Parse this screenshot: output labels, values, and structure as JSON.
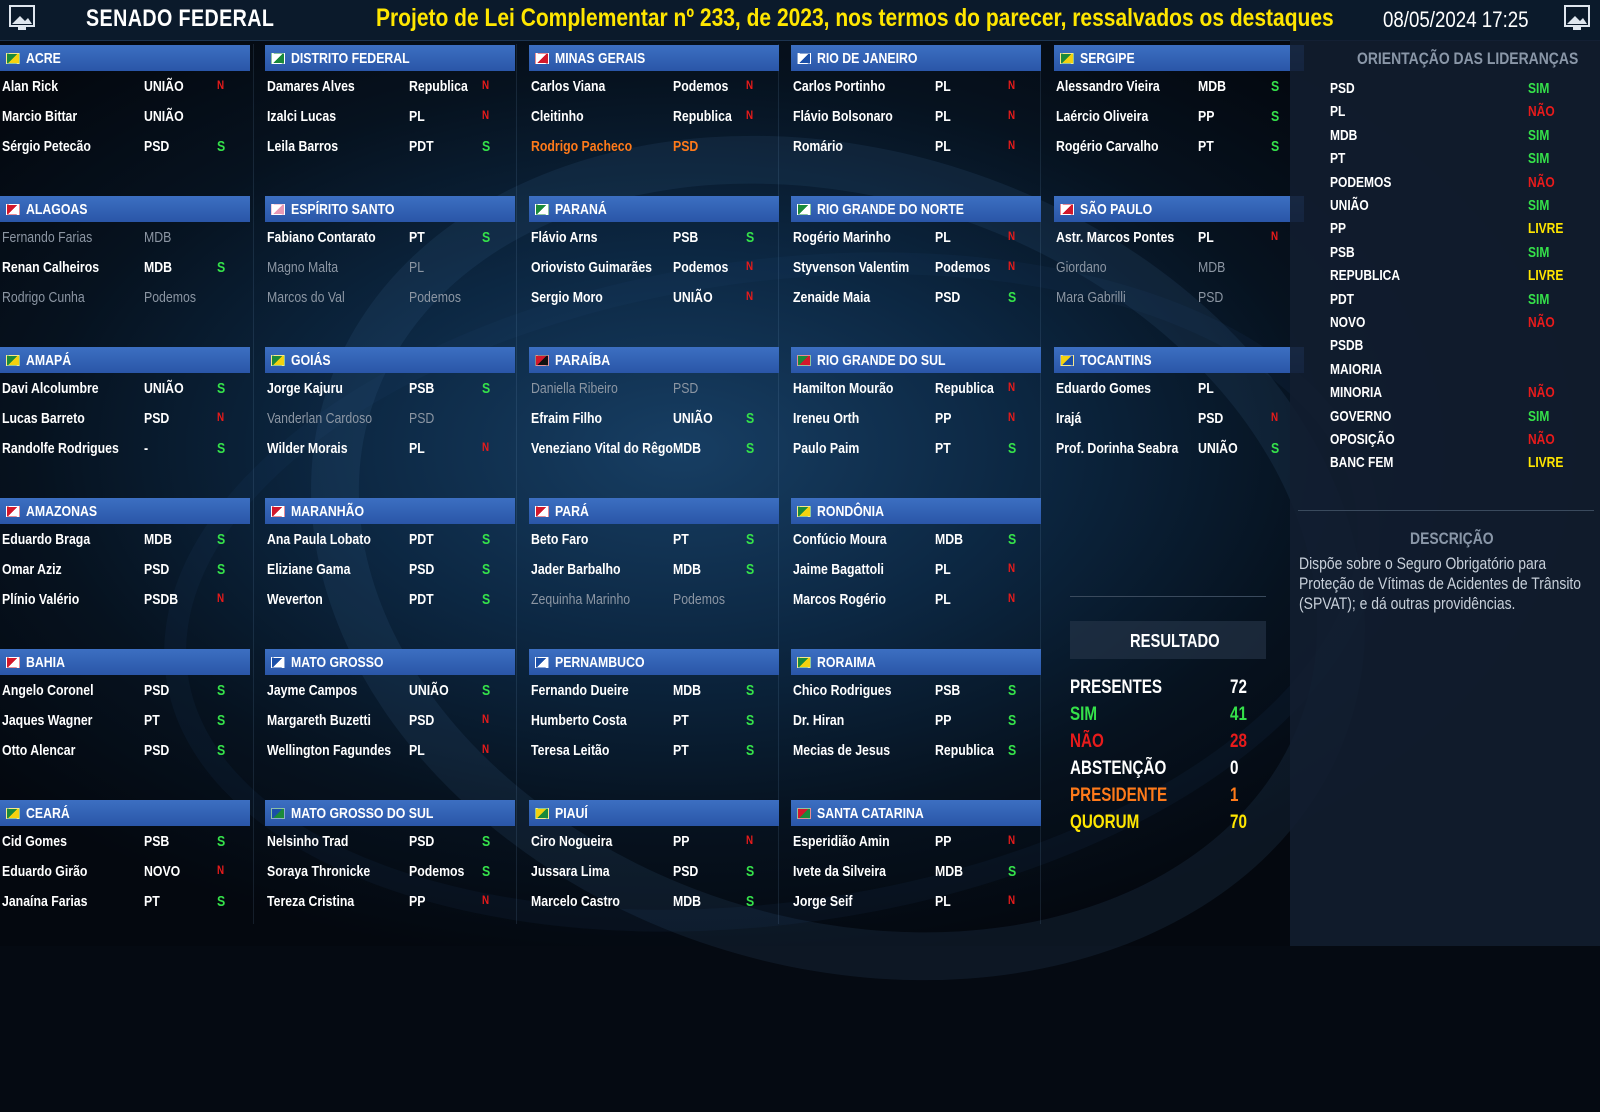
{
  "header": {
    "brand": "SENADO FEDERAL",
    "project": "Projeto de Lei Complementar nº 233, de 2023, nos termos do parecer, ressalvados os destaques",
    "datetime": "08/05/2024 17:25"
  },
  "colors": {
    "header_blue": "#3c6fc2",
    "yes_green": "#35e14a",
    "no_red": "#e81b1b",
    "free_yellow": "#ffe600",
    "president_orange": "#ff7a1a"
  },
  "states": [
    {
      "name": "ACRE",
      "flag": [
        "#1b8a3a",
        "#f4d20e"
      ],
      "senators": [
        {
          "name": "Alan Rick",
          "party": "UNIÃO",
          "vote": "N"
        },
        {
          "name": "Marcio Bittar",
          "party": "UNIÃO",
          "vote": ""
        },
        {
          "name": "Sérgio Petecão",
          "party": "PSD",
          "vote": "S"
        }
      ]
    },
    {
      "name": "ALAGOAS",
      "flag": [
        "#d3182b",
        "#ffffff"
      ],
      "senators": [
        {
          "name": "Fernando Farias",
          "party": "MDB",
          "vote": "",
          "status": "absent"
        },
        {
          "name": "Renan Calheiros",
          "party": "MDB",
          "vote": "S"
        },
        {
          "name": "Rodrigo Cunha",
          "party": "Podemos",
          "vote": "",
          "status": "absent"
        }
      ]
    },
    {
      "name": "AMAPÁ",
      "flag": [
        "#1b8a3a",
        "#f4d20e"
      ],
      "senators": [
        {
          "name": "Davi Alcolumbre",
          "party": "UNIÃO",
          "vote": "S"
        },
        {
          "name": "Lucas Barreto",
          "party": "PSD",
          "vote": "N"
        },
        {
          "name": "Randolfe Rodrigues",
          "party": "-",
          "vote": "S"
        }
      ]
    },
    {
      "name": "AMAZONAS",
      "flag": [
        "#d3182b",
        "#ffffff"
      ],
      "senators": [
        {
          "name": "Eduardo Braga",
          "party": "MDB",
          "vote": "S"
        },
        {
          "name": "Omar Aziz",
          "party": "PSD",
          "vote": "S"
        },
        {
          "name": "Plínio Valério",
          "party": "PSDB",
          "vote": "N"
        }
      ]
    },
    {
      "name": "BAHIA",
      "flag": [
        "#d3182b",
        "#ffffff"
      ],
      "senators": [
        {
          "name": "Angelo Coronel",
          "party": "PSD",
          "vote": "S"
        },
        {
          "name": "Jaques Wagner",
          "party": "PT",
          "vote": "S"
        },
        {
          "name": "Otto Alencar",
          "party": "PSD",
          "vote": "S"
        }
      ]
    },
    {
      "name": "CEARÁ",
      "flag": [
        "#1b8a3a",
        "#f4d20e"
      ],
      "senators": [
        {
          "name": "Cid Gomes",
          "party": "PSB",
          "vote": "S"
        },
        {
          "name": "Eduardo Girão",
          "party": "NOVO",
          "vote": "N"
        },
        {
          "name": "Janaína Farias",
          "party": "PT",
          "vote": "S"
        }
      ]
    },
    {
      "name": "DISTRITO FEDERAL",
      "flag": [
        "#ffffff",
        "#1b8a3a"
      ],
      "senators": [
        {
          "name": "Damares Alves",
          "party": "Republica",
          "vote": "N"
        },
        {
          "name": "Izalci Lucas",
          "party": "PL",
          "vote": "N"
        },
        {
          "name": "Leila Barros",
          "party": "PDT",
          "vote": "S"
        }
      ]
    },
    {
      "name": "ESPÍRITO SANTO",
      "flag": [
        "#ffffff",
        "#e89ab5"
      ],
      "senators": [
        {
          "name": "Fabiano Contarato",
          "party": "PT",
          "vote": "S"
        },
        {
          "name": "Magno Malta",
          "party": "PL",
          "vote": "",
          "status": "absent"
        },
        {
          "name": "Marcos do Val",
          "party": "Podemos",
          "vote": "",
          "status": "absent"
        }
      ]
    },
    {
      "name": "GOIÁS",
      "flag": [
        "#1b8a3a",
        "#f4d20e"
      ],
      "senators": [
        {
          "name": "Jorge Kajuru",
          "party": "PSB",
          "vote": "S"
        },
        {
          "name": "Vanderlan Cardoso",
          "party": "PSD",
          "vote": "",
          "status": "absent"
        },
        {
          "name": "Wilder Morais",
          "party": "PL",
          "vote": "N"
        }
      ]
    },
    {
      "name": "MARANHÃO",
      "flag": [
        "#d3182b",
        "#ffffff"
      ],
      "senators": [
        {
          "name": "Ana Paula Lobato",
          "party": "PDT",
          "vote": "S"
        },
        {
          "name": "Eliziane Gama",
          "party": "PSD",
          "vote": "S"
        },
        {
          "name": "Weverton",
          "party": "PDT",
          "vote": "S"
        }
      ]
    },
    {
      "name": "MATO GROSSO",
      "flag": [
        "#1b4fa8",
        "#ffffff"
      ],
      "senators": [
        {
          "name": "Jayme Campos",
          "party": "UNIÃO",
          "vote": "S"
        },
        {
          "name": "Margareth Buzetti",
          "party": "PSD",
          "vote": "N"
        },
        {
          "name": "Wellington Fagundes",
          "party": "PL",
          "vote": "N"
        }
      ]
    },
    {
      "name": "MATO GROSSO DO SUL",
      "flag": [
        "#1b4fa8",
        "#1b8a3a"
      ],
      "senators": [
        {
          "name": "Nelsinho Trad",
          "party": "PSD",
          "vote": "S"
        },
        {
          "name": "Soraya Thronicke",
          "party": "Podemos",
          "vote": "S"
        },
        {
          "name": "Tereza Cristina",
          "party": "PP",
          "vote": "N"
        }
      ]
    },
    {
      "name": "MINAS GERAIS",
      "flag": [
        "#ffffff",
        "#d3182b"
      ],
      "senators": [
        {
          "name": "Carlos Viana",
          "party": "Podemos",
          "vote": "N"
        },
        {
          "name": "Cleitinho",
          "party": "Republica",
          "vote": "N"
        },
        {
          "name": "Rodrigo Pacheco",
          "party": "PSD",
          "vote": "",
          "status": "president"
        }
      ]
    },
    {
      "name": "PARANÁ",
      "flag": [
        "#1b8a3a",
        "#ffffff"
      ],
      "senators": [
        {
          "name": "Flávio Arns",
          "party": "PSB",
          "vote": "S"
        },
        {
          "name": "Oriovisto Guimarães",
          "party": "Podemos",
          "vote": "N"
        },
        {
          "name": "Sergio Moro",
          "party": "UNIÃO",
          "vote": "N"
        }
      ]
    },
    {
      "name": "PARAÍBA",
      "flag": [
        "#d3182b",
        "#111111"
      ],
      "senators": [
        {
          "name": "Daniella Ribeiro",
          "party": "PSD",
          "vote": "",
          "status": "absent"
        },
        {
          "name": "Efraim Filho",
          "party": "UNIÃO",
          "vote": "S"
        },
        {
          "name": "Veneziano Vital do Rêgo",
          "party": "MDB",
          "vote": "S"
        }
      ]
    },
    {
      "name": "PARÁ",
      "flag": [
        "#d3182b",
        "#ffffff"
      ],
      "senators": [
        {
          "name": "Beto Faro",
          "party": "PT",
          "vote": "S"
        },
        {
          "name": "Jader Barbalho",
          "party": "MDB",
          "vote": "S"
        },
        {
          "name": "Zequinha Marinho",
          "party": "Podemos",
          "vote": "",
          "status": "absent"
        }
      ]
    },
    {
      "name": "PERNAMBUCO",
      "flag": [
        "#1b4fa8",
        "#ffffff"
      ],
      "senators": [
        {
          "name": "Fernando Dueire",
          "party": "MDB",
          "vote": "S"
        },
        {
          "name": "Humberto Costa",
          "party": "PT",
          "vote": "S"
        },
        {
          "name": "Teresa Leitão",
          "party": "PT",
          "vote": "S"
        }
      ]
    },
    {
      "name": "PIAUÍ",
      "flag": [
        "#f4d20e",
        "#1b8a3a"
      ],
      "senators": [
        {
          "name": "Ciro Nogueira",
          "party": "PP",
          "vote": "N"
        },
        {
          "name": "Jussara Lima",
          "party": "PSD",
          "vote": "S"
        },
        {
          "name": "Marcelo Castro",
          "party": "MDB",
          "vote": "S"
        }
      ]
    },
    {
      "name": "RIO DE JANEIRO",
      "flag": [
        "#ffffff",
        "#1b4fa8"
      ],
      "senators": [
        {
          "name": "Carlos Portinho",
          "party": "PL",
          "vote": "N"
        },
        {
          "name": "Flávio Bolsonaro",
          "party": "PL",
          "vote": "N"
        },
        {
          "name": "Romário",
          "party": "PL",
          "vote": "N"
        }
      ]
    },
    {
      "name": "RIO GRANDE DO NORTE",
      "flag": [
        "#1b8a3a",
        "#ffffff"
      ],
      "senators": [
        {
          "name": "Rogério Marinho",
          "party": "PL",
          "vote": "N"
        },
        {
          "name": "Styvenson Valentim",
          "party": "Podemos",
          "vote": "N"
        },
        {
          "name": "Zenaide Maia",
          "party": "PSD",
          "vote": "S"
        }
      ]
    },
    {
      "name": "RIO GRANDE DO SUL",
      "flag": [
        "#1b8a3a",
        "#d3182b"
      ],
      "senators": [
        {
          "name": "Hamilton Mourão",
          "party": "Republica",
          "vote": "N"
        },
        {
          "name": "Ireneu Orth",
          "party": "PP",
          "vote": "N"
        },
        {
          "name": "Paulo Paim",
          "party": "PT",
          "vote": "S"
        }
      ]
    },
    {
      "name": "RONDÔNIA",
      "flag": [
        "#1b8a3a",
        "#f4d20e"
      ],
      "senators": [
        {
          "name": "Confúcio Moura",
          "party": "MDB",
          "vote": "S"
        },
        {
          "name": "Jaime Bagattoli",
          "party": "PL",
          "vote": "N"
        },
        {
          "name": "Marcos Rogério",
          "party": "PL",
          "vote": "N"
        }
      ]
    },
    {
      "name": "RORAIMA",
      "flag": [
        "#1b8a3a",
        "#f4d20e"
      ],
      "senators": [
        {
          "name": "Chico Rodrigues",
          "party": "PSB",
          "vote": "S"
        },
        {
          "name": "Dr. Hiran",
          "party": "PP",
          "vote": "S"
        },
        {
          "name": "Mecias de Jesus",
          "party": "Republica",
          "vote": "S"
        }
      ]
    },
    {
      "name": "SANTA CATARINA",
      "flag": [
        "#d3182b",
        "#1b8a3a"
      ],
      "senators": [
        {
          "name": "Esperidião Amin",
          "party": "PP",
          "vote": "N"
        },
        {
          "name": "Ivete da Silveira",
          "party": "MDB",
          "vote": "S"
        },
        {
          "name": "Jorge Seif",
          "party": "PL",
          "vote": "N"
        }
      ]
    },
    {
      "name": "SERGIPE",
      "flag": [
        "#1b8a3a",
        "#f4d20e"
      ],
      "senators": [
        {
          "name": "Alessandro Vieira",
          "party": "MDB",
          "vote": "S"
        },
        {
          "name": "Laércio Oliveira",
          "party": "PP",
          "vote": "S"
        },
        {
          "name": "Rogério Carvalho",
          "party": "PT",
          "vote": "S"
        }
      ]
    },
    {
      "name": "SÃO PAULO",
      "flag": [
        "#ffffff",
        "#d3182b"
      ],
      "senators": [
        {
          "name": "Astr. Marcos Pontes",
          "party": "PL",
          "vote": "N"
        },
        {
          "name": "Giordano",
          "party": "MDB",
          "vote": "",
          "status": "absent"
        },
        {
          "name": "Mara Gabrilli",
          "party": "PSD",
          "vote": "",
          "status": "absent"
        }
      ]
    },
    {
      "name": "TOCANTINS",
      "flag": [
        "#f4d20e",
        "#1b4fa8"
      ],
      "senators": [
        {
          "name": "Eduardo Gomes",
          "party": "PL",
          "vote": ""
        },
        {
          "name": "Irajá",
          "party": "PSD",
          "vote": "N"
        },
        {
          "name": "Prof. Dorinha Seabra",
          "party": "UNIÃO",
          "vote": "S"
        }
      ]
    }
  ],
  "vote_labels": {
    "S": "S",
    "N": "N"
  },
  "orientation": {
    "title": "ORIENTAÇÃO DAS LIDERANÇAS",
    "items": [
      {
        "party": "PSD",
        "vote": "SIM"
      },
      {
        "party": "PL",
        "vote": "NÃO"
      },
      {
        "party": "MDB",
        "vote": "SIM"
      },
      {
        "party": "PT",
        "vote": "SIM"
      },
      {
        "party": "PODEMOS",
        "vote": "NÃO"
      },
      {
        "party": "UNIÃO",
        "vote": "SIM"
      },
      {
        "party": "PP",
        "vote": "LIVRE"
      },
      {
        "party": "PSB",
        "vote": "SIM"
      },
      {
        "party": "REPUBLICA",
        "vote": "LIVRE"
      },
      {
        "party": "PDT",
        "vote": "SIM"
      },
      {
        "party": "NOVO",
        "vote": "NÃO"
      },
      {
        "party": "PSDB",
        "vote": ""
      },
      {
        "party": "MAIORIA",
        "vote": ""
      },
      {
        "party": "MINORIA",
        "vote": "NÃO"
      },
      {
        "party": "GOVERNO",
        "vote": "SIM"
      },
      {
        "party": "OPOSIÇÃO",
        "vote": "NÃO"
      },
      {
        "party": "BANC FEM",
        "vote": "LIVRE"
      }
    ]
  },
  "description": {
    "title": "DESCRIÇÃO",
    "text": "Dispõe sobre o Seguro Obrigatório para Proteção de Vítimas de Acidentes de Trânsito (SPVAT); e dá outras providências."
  },
  "result": {
    "title": "RESULTADO",
    "items": [
      {
        "label": "PRESENTES",
        "value": "72",
        "color": "#ffffff"
      },
      {
        "label": "SIM",
        "value": "41",
        "color": "#35e14a"
      },
      {
        "label": "NÃO",
        "value": "28",
        "color": "#e81b1b"
      },
      {
        "label": "ABSTENÇÃO",
        "value": "0",
        "color": "#ffffff"
      },
      {
        "label": "PRESIDENTE",
        "value": "1",
        "color": "#ff7a1a"
      },
      {
        "label": "QUORUM",
        "value": "70",
        "color": "#ffe600"
      }
    ]
  }
}
